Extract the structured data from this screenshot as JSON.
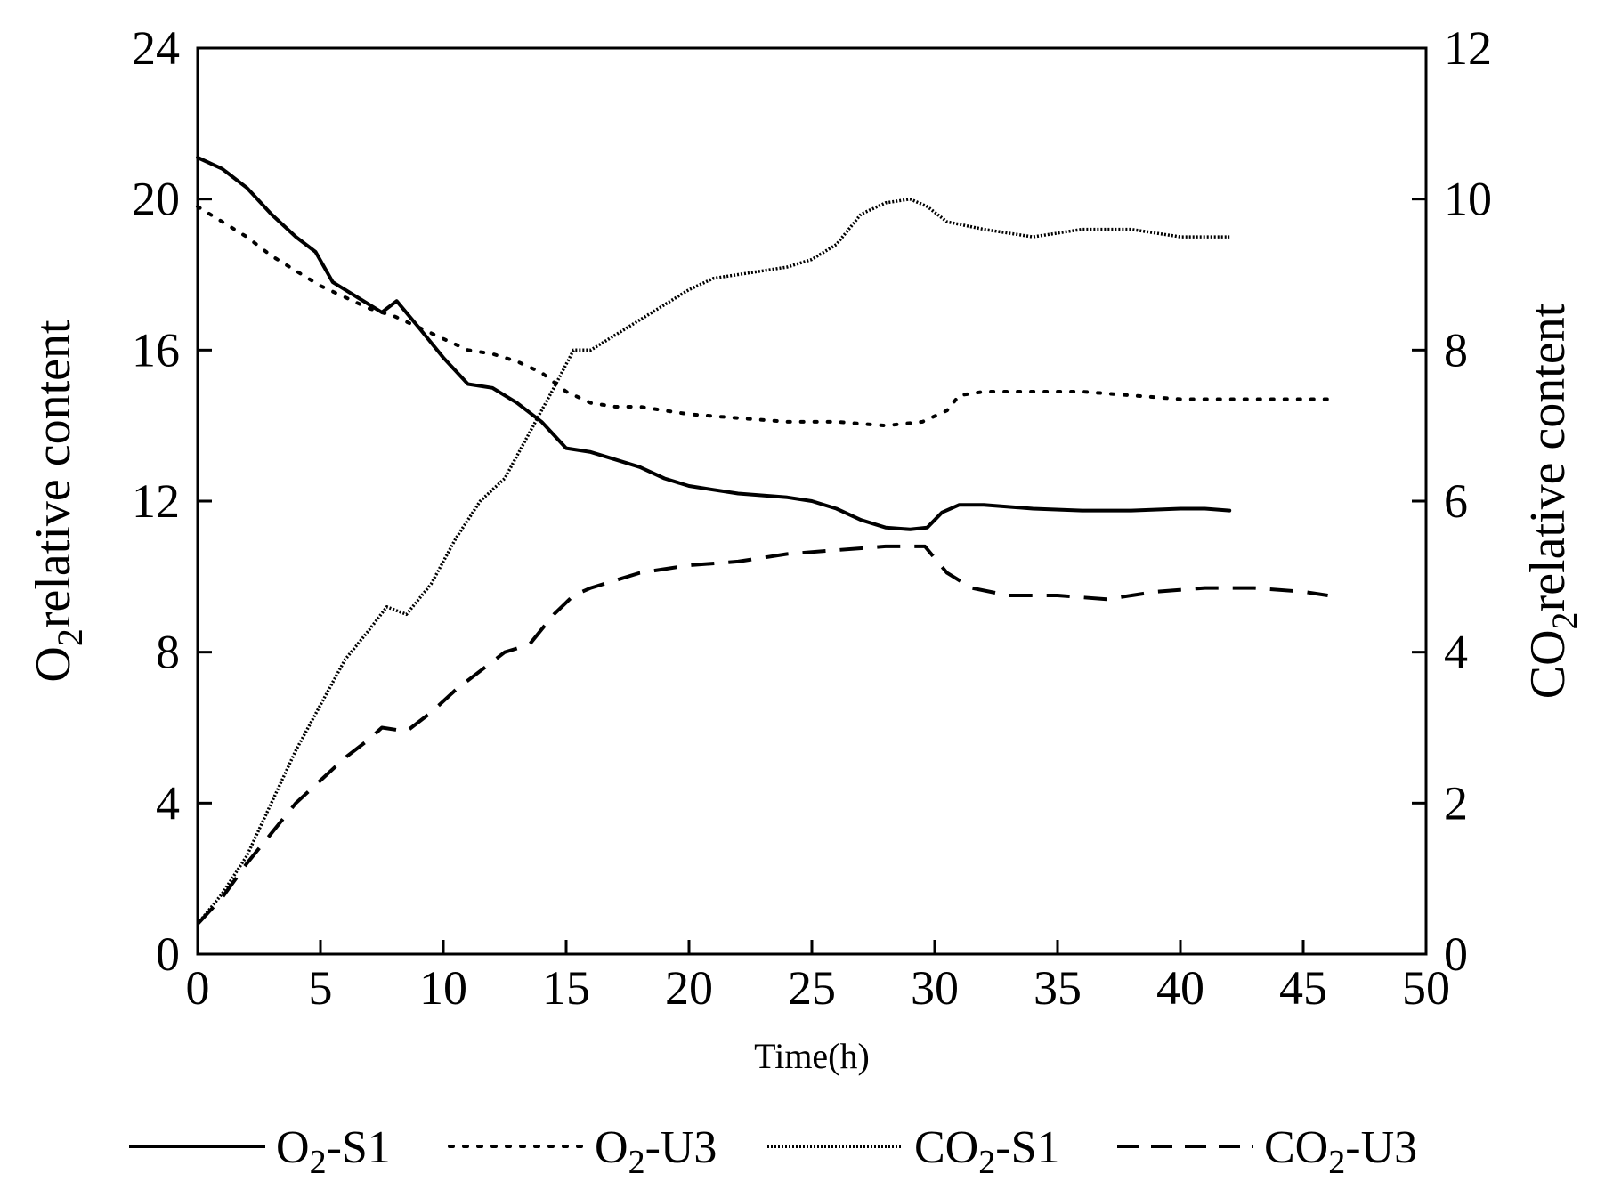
{
  "chart_data": {
    "type": "line",
    "title": "",
    "xlabel": "Time(h)",
    "ylabel_left": {
      "main": "O",
      "sub": "2",
      "rest": "relative content"
    },
    "ylabel_right": {
      "main": "CO",
      "sub": "2",
      "rest": "relative content"
    },
    "xlim": [
      0,
      50
    ],
    "ylim_left": [
      0,
      24
    ],
    "ylim_right": [
      0,
      12
    ],
    "xticks": [
      0,
      5,
      10,
      15,
      20,
      25,
      30,
      35,
      40,
      45,
      50
    ],
    "yticks_left": [
      0,
      4,
      8,
      12,
      16,
      20,
      24
    ],
    "yticks_right": [
      0,
      2,
      4,
      6,
      8,
      10,
      12
    ],
    "grid": false,
    "legend_position": "bottom",
    "series": [
      {
        "name": "O2-S1",
        "label": {
          "main": "O",
          "sub": "2",
          "rest": "-S1"
        },
        "axis": "left",
        "style": "solid",
        "points": [
          [
            0,
            21.1
          ],
          [
            1,
            20.8
          ],
          [
            2,
            20.3
          ],
          [
            3,
            19.6
          ],
          [
            4,
            19.0
          ],
          [
            4.8,
            18.6
          ],
          [
            5.5,
            17.8
          ],
          [
            6.5,
            17.4
          ],
          [
            7.5,
            17.0
          ],
          [
            8.1,
            17.3
          ],
          [
            9,
            16.6
          ],
          [
            10,
            15.8
          ],
          [
            11,
            15.1
          ],
          [
            12,
            15.0
          ],
          [
            13,
            14.6
          ],
          [
            14,
            14.1
          ],
          [
            15,
            13.4
          ],
          [
            16,
            13.3
          ],
          [
            17,
            13.1
          ],
          [
            18,
            12.9
          ],
          [
            19,
            12.6
          ],
          [
            20,
            12.4
          ],
          [
            21,
            12.3
          ],
          [
            22,
            12.2
          ],
          [
            24,
            12.1
          ],
          [
            25,
            12.0
          ],
          [
            26,
            11.8
          ],
          [
            27,
            11.5
          ],
          [
            28,
            11.3
          ],
          [
            29,
            11.25
          ],
          [
            29.7,
            11.3
          ],
          [
            30.3,
            11.7
          ],
          [
            31,
            11.9
          ],
          [
            32,
            11.9
          ],
          [
            34,
            11.8
          ],
          [
            36,
            11.75
          ],
          [
            38,
            11.75
          ],
          [
            40,
            11.8
          ],
          [
            41,
            11.8
          ],
          [
            42,
            11.75
          ]
        ]
      },
      {
        "name": "O2-U3",
        "label": {
          "main": "O",
          "sub": "2",
          "rest": "-U3"
        },
        "axis": "left",
        "style": "dotted",
        "points": [
          [
            0,
            19.8
          ],
          [
            1,
            19.4
          ],
          [
            2,
            19.0
          ],
          [
            3,
            18.5
          ],
          [
            4,
            18.1
          ],
          [
            5,
            17.7
          ],
          [
            6,
            17.4
          ],
          [
            7,
            17.1
          ],
          [
            8,
            16.9
          ],
          [
            9,
            16.6
          ],
          [
            10,
            16.3
          ],
          [
            11,
            16.0
          ],
          [
            12,
            15.9
          ],
          [
            13,
            15.7
          ],
          [
            14,
            15.4
          ],
          [
            15,
            14.9
          ],
          [
            16,
            14.6
          ],
          [
            17,
            14.5
          ],
          [
            18,
            14.5
          ],
          [
            20,
            14.3
          ],
          [
            22,
            14.2
          ],
          [
            24,
            14.1
          ],
          [
            26,
            14.1
          ],
          [
            28,
            14.0
          ],
          [
            29.5,
            14.1
          ],
          [
            30.5,
            14.4
          ],
          [
            31,
            14.8
          ],
          [
            32,
            14.9
          ],
          [
            34,
            14.9
          ],
          [
            36,
            14.9
          ],
          [
            38,
            14.8
          ],
          [
            40,
            14.7
          ],
          [
            42,
            14.7
          ],
          [
            44,
            14.7
          ],
          [
            46,
            14.7
          ]
        ]
      },
      {
        "name": "CO2-S1",
        "label": {
          "main": "CO",
          "sub": "2",
          "rest": "-S1"
        },
        "axis": "right",
        "style": "fine-dotted",
        "points": [
          [
            0,
            0.4
          ],
          [
            1,
            0.8
          ],
          [
            2,
            1.3
          ],
          [
            3,
            2.0
          ],
          [
            4,
            2.7
          ],
          [
            5,
            3.3
          ],
          [
            6,
            3.9
          ],
          [
            7,
            4.3
          ],
          [
            7.7,
            4.6
          ],
          [
            8.5,
            4.5
          ],
          [
            9.5,
            4.9
          ],
          [
            10.5,
            5.5
          ],
          [
            11.5,
            6.0
          ],
          [
            12.5,
            6.3
          ],
          [
            13.5,
            6.9
          ],
          [
            14.5,
            7.5
          ],
          [
            15.3,
            8.0
          ],
          [
            16,
            8.0
          ],
          [
            17,
            8.2
          ],
          [
            18,
            8.4
          ],
          [
            19,
            8.6
          ],
          [
            20,
            8.8
          ],
          [
            21,
            8.95
          ],
          [
            22,
            9.0
          ],
          [
            23,
            9.05
          ],
          [
            24,
            9.1
          ],
          [
            25,
            9.2
          ],
          [
            26,
            9.4
          ],
          [
            27,
            9.8
          ],
          [
            28,
            9.95
          ],
          [
            29,
            10.0
          ],
          [
            29.7,
            9.9
          ],
          [
            30.5,
            9.7
          ],
          [
            32,
            9.6
          ],
          [
            34,
            9.5
          ],
          [
            36,
            9.6
          ],
          [
            38,
            9.6
          ],
          [
            40,
            9.5
          ],
          [
            42,
            9.5
          ]
        ]
      },
      {
        "name": "CO2-U3",
        "label": {
          "main": "CO",
          "sub": "2",
          "rest": "-U3"
        },
        "axis": "right",
        "style": "dashed",
        "points": [
          [
            0,
            0.4
          ],
          [
            1,
            0.75
          ],
          [
            2,
            1.2
          ],
          [
            3,
            1.6
          ],
          [
            4,
            2.0
          ],
          [
            5,
            2.3
          ],
          [
            6,
            2.6
          ],
          [
            7,
            2.85
          ],
          [
            7.5,
            3.0
          ],
          [
            8.5,
            2.95
          ],
          [
            9.5,
            3.2
          ],
          [
            10.5,
            3.5
          ],
          [
            11.5,
            3.75
          ],
          [
            12.5,
            4.0
          ],
          [
            13.5,
            4.1
          ],
          [
            14.5,
            4.5
          ],
          [
            15.3,
            4.75
          ],
          [
            16,
            4.85
          ],
          [
            17,
            4.95
          ],
          [
            18,
            5.05
          ],
          [
            19,
            5.1
          ],
          [
            20,
            5.15
          ],
          [
            22,
            5.2
          ],
          [
            24,
            5.3
          ],
          [
            26,
            5.35
          ],
          [
            28,
            5.4
          ],
          [
            29.6,
            5.4
          ],
          [
            30.5,
            5.05
          ],
          [
            31.5,
            4.85
          ],
          [
            33,
            4.75
          ],
          [
            35,
            4.75
          ],
          [
            37,
            4.7
          ],
          [
            39,
            4.8
          ],
          [
            41,
            4.85
          ],
          [
            43,
            4.85
          ],
          [
            45,
            4.8
          ],
          [
            46,
            4.75
          ]
        ]
      }
    ]
  }
}
